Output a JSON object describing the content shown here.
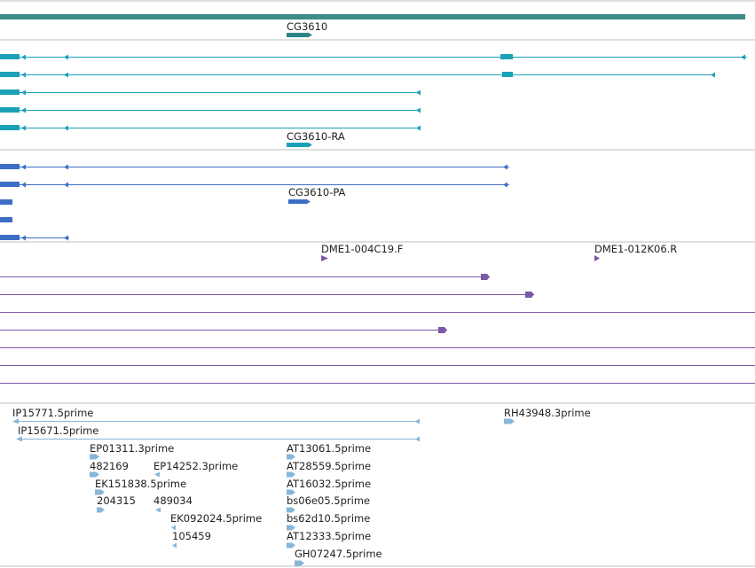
{
  "colors": {
    "scaffold": "#3e8c8a",
    "gene": "#2d8585",
    "mrna": "#1ba1b7",
    "protein": "#3d6ec5",
    "clone": "#7a58a6",
    "est": "#86b6d8",
    "divider": "#bfbfbf"
  },
  "tracks": {
    "gene": {
      "label": "CG3610"
    },
    "transcripts": {
      "label": "CG3610-RA",
      "rows": [
        {
          "name": "transcript-1",
          "segments": [
            [
              0,
              22,
              "box"
            ],
            [
              22,
              576,
              "line"
            ],
            [
              564,
              578,
              "box"
            ],
            [
              578,
              842,
              "line"
            ]
          ],
          "arrows": [
            27,
            75,
            566,
            838
          ]
        },
        {
          "name": "transcript-2",
          "segments": [
            [
              0,
              22,
              "box"
            ],
            [
              22,
              568,
              "line"
            ],
            [
              566,
              578,
              "box"
            ],
            [
              578,
              806,
              "line"
            ]
          ],
          "arrows": [
            27,
            75,
            804
          ]
        },
        {
          "name": "transcript-3",
          "segments": [
            [
              0,
              22,
              "box"
            ],
            [
              22,
              474,
              "line"
            ]
          ],
          "arrows": [
            27,
            472
          ]
        },
        {
          "name": "transcript-4",
          "segments": [
            [
              0,
              22,
              "box"
            ],
            [
              22,
              474,
              "line"
            ]
          ],
          "arrows": [
            27,
            472
          ]
        },
        {
          "name": "transcript-5",
          "segments": [
            [
              0,
              22,
              "box"
            ],
            [
              22,
              474,
              "line"
            ]
          ],
          "arrows": [
            27,
            75,
            472
          ]
        }
      ]
    },
    "proteins": {
      "label": "CG3610-PA",
      "rows": [
        {
          "name": "protein-1",
          "segments": [
            [
              0,
              22,
              "box"
            ],
            [
              22,
              574,
              "line"
            ]
          ],
          "arrows": [
            27,
            75,
            570
          ]
        },
        {
          "name": "protein-2",
          "segments": [
            [
              0,
              22,
              "box"
            ],
            [
              22,
              574,
              "line"
            ]
          ],
          "arrows": [
            27,
            75,
            570
          ]
        },
        {
          "name": "protein-3",
          "segments": [
            [
              0,
              14,
              "box"
            ]
          ],
          "arrows": []
        },
        {
          "name": "protein-4",
          "segments": [
            [
              0,
              14,
              "box"
            ]
          ],
          "arrows": []
        },
        {
          "name": "protein-5",
          "segments": [
            [
              0,
              22,
              "box"
            ],
            [
              22,
              78,
              "line"
            ]
          ],
          "arrows": [
            27,
            75
          ]
        }
      ]
    },
    "clones": {
      "labels": [
        "DME1-004C19.F",
        "DME1-012K06.R"
      ],
      "rows": [
        {
          "name": "clone-line-1",
          "end": 552,
          "arrow": true
        },
        {
          "name": "clone-line-2",
          "end": 602,
          "arrow": true
        },
        {
          "name": "clone-line-3",
          "end": 851,
          "arrow": false
        },
        {
          "name": "clone-line-4",
          "end": 504,
          "arrow": true
        },
        {
          "name": "clone-line-5",
          "end": 851,
          "arrow": false
        },
        {
          "name": "clone-line-6",
          "end": 851,
          "arrow": false
        },
        {
          "name": "clone-line-7",
          "end": 851,
          "arrow": false
        }
      ]
    },
    "ests": {
      "items": [
        {
          "label": "IP15771.5prime"
        },
        {
          "label": "IP15671.5prime"
        },
        {
          "label": "RH43948.3prime"
        },
        {
          "label": "EP01311.3prime"
        },
        {
          "label": "482169"
        },
        {
          "label": "EP14252.3prime"
        },
        {
          "label": "EK151838.5prime"
        },
        {
          "label": "204315"
        },
        {
          "label": "489034"
        },
        {
          "label": "EK092024.5prime"
        },
        {
          "label": "105459"
        },
        {
          "label": "AT13061.5prime"
        },
        {
          "label": "AT28559.5prime"
        },
        {
          "label": "AT16032.5prime"
        },
        {
          "label": "bs06e05.5prime"
        },
        {
          "label": "bs62d10.5prime"
        },
        {
          "label": "AT12333.5prime"
        },
        {
          "label": "GH07247.5prime"
        }
      ]
    }
  }
}
